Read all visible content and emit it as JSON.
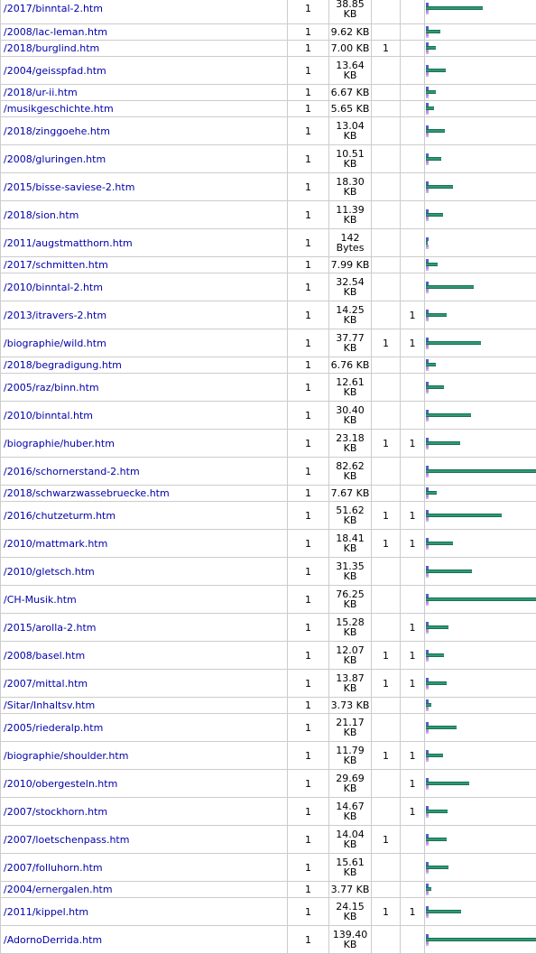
{
  "table": {
    "rows": [
      {
        "page": "/2017/binntal-2.htm",
        "hits": "1",
        "size": "38.85 KB",
        "entry": "",
        "exit": "",
        "bar_fraction": 0.519
      },
      {
        "page": "/2008/lac-leman.htm",
        "hits": "1",
        "size": "9.62 KB",
        "entry": "",
        "exit": "",
        "bar_fraction": 0.128
      },
      {
        "page": "/2018/burglind.htm",
        "hits": "1",
        "size": "7.00 KB",
        "entry": "1",
        "exit": "",
        "bar_fraction": 0.094
      },
      {
        "page": "/2004/geisspfad.htm",
        "hits": "1",
        "size": "13.64 KB",
        "entry": "",
        "exit": "",
        "bar_fraction": 0.182
      },
      {
        "page": "/2018/ur-ii.htm",
        "hits": "1",
        "size": "6.67 KB",
        "entry": "",
        "exit": "",
        "bar_fraction": 0.089
      },
      {
        "page": "/musikgeschichte.htm",
        "hits": "1",
        "size": "5.65 KB",
        "entry": "",
        "exit": "",
        "bar_fraction": 0.075
      },
      {
        "page": "/2018/zinggoehe.htm",
        "hits": "1",
        "size": "13.04 KB",
        "entry": "",
        "exit": "",
        "bar_fraction": 0.174
      },
      {
        "page": "/2008/gluringen.htm",
        "hits": "1",
        "size": "10.51 KB",
        "entry": "",
        "exit": "",
        "bar_fraction": 0.14
      },
      {
        "page": "/2015/bisse-saviese-2.htm",
        "hits": "1",
        "size": "18.30 KB",
        "entry": "",
        "exit": "",
        "bar_fraction": 0.244
      },
      {
        "page": "/2018/sion.htm",
        "hits": "1",
        "size": "11.39 KB",
        "entry": "",
        "exit": "",
        "bar_fraction": 0.152
      },
      {
        "page": "/2011/augstmatthorn.htm",
        "hits": "1",
        "size": "142 Bytes",
        "entry": "",
        "exit": "",
        "bar_fraction": 0.002
      },
      {
        "page": "/2017/schmitten.htm",
        "hits": "1",
        "size": "7.99 KB",
        "entry": "",
        "exit": "",
        "bar_fraction": 0.107
      },
      {
        "page": "/2010/binntal-2.htm",
        "hits": "1",
        "size": "32.54 KB",
        "entry": "",
        "exit": "",
        "bar_fraction": 0.434
      },
      {
        "page": "/2013/itravers-2.htm",
        "hits": "1",
        "size": "14.25 KB",
        "entry": "",
        "exit": "1",
        "bar_fraction": 0.19
      },
      {
        "page": "/biographie/wild.htm",
        "hits": "1",
        "size": "37.77 KB",
        "entry": "1",
        "exit": "1",
        "bar_fraction": 0.504
      },
      {
        "page": "/2018/begradigung.htm",
        "hits": "1",
        "size": "6.76 KB",
        "entry": "",
        "exit": "",
        "bar_fraction": 0.09
      },
      {
        "page": "/2005/raz/binn.htm",
        "hits": "1",
        "size": "12.61 KB",
        "entry": "",
        "exit": "",
        "bar_fraction": 0.168
      },
      {
        "page": "/2010/binntal.htm",
        "hits": "1",
        "size": "30.40 KB",
        "entry": "",
        "exit": "",
        "bar_fraction": 0.406
      },
      {
        "page": "/biographie/huber.htm",
        "hits": "1",
        "size": "23.18 KB",
        "entry": "1",
        "exit": "1",
        "bar_fraction": 0.309
      },
      {
        "page": "/2016/schornerstand-2.htm",
        "hits": "1",
        "size": "82.62 KB",
        "entry": "",
        "exit": "",
        "bar_fraction": 1.0
      },
      {
        "page": "/2018/schwarzwassebruecke.htm",
        "hits": "1",
        "size": "7.67 KB",
        "entry": "",
        "exit": "",
        "bar_fraction": 0.102
      },
      {
        "page": "/2016/chutzeturm.htm",
        "hits": "1",
        "size": "51.62 KB",
        "entry": "1",
        "exit": "1",
        "bar_fraction": 0.689
      },
      {
        "page": "/2010/mattmark.htm",
        "hits": "1",
        "size": "18.41 KB",
        "entry": "1",
        "exit": "1",
        "bar_fraction": 0.246
      },
      {
        "page": "/2010/gletsch.htm",
        "hits": "1",
        "size": "31.35 KB",
        "entry": "",
        "exit": "",
        "bar_fraction": 0.418
      },
      {
        "page": "/CH-Musik.htm",
        "hits": "1",
        "size": "76.25 KB",
        "entry": "",
        "exit": "",
        "bar_fraction": 1.0
      },
      {
        "page": "/2015/arolla-2.htm",
        "hits": "1",
        "size": "15.28 KB",
        "entry": "",
        "exit": "1",
        "bar_fraction": 0.204
      },
      {
        "page": "/2008/basel.htm",
        "hits": "1",
        "size": "12.07 KB",
        "entry": "1",
        "exit": "1",
        "bar_fraction": 0.161
      },
      {
        "page": "/2007/mittal.htm",
        "hits": "1",
        "size": "13.87 KB",
        "entry": "1",
        "exit": "1",
        "bar_fraction": 0.185
      },
      {
        "page": "/Sitar/Inhaltsv.htm",
        "hits": "1",
        "size": "3.73 KB",
        "entry": "",
        "exit": "",
        "bar_fraction": 0.05
      },
      {
        "page": "/2005/riederalp.htm",
        "hits": "1",
        "size": "21.17 KB",
        "entry": "",
        "exit": "",
        "bar_fraction": 0.282
      },
      {
        "page": "/biographie/shoulder.htm",
        "hits": "1",
        "size": "11.79 KB",
        "entry": "1",
        "exit": "1",
        "bar_fraction": 0.157
      },
      {
        "page": "/2010/obergesteln.htm",
        "hits": "1",
        "size": "29.69 KB",
        "entry": "",
        "exit": "1",
        "bar_fraction": 0.396
      },
      {
        "page": "/2007/stockhorn.htm",
        "hits": "1",
        "size": "14.67 KB",
        "entry": "",
        "exit": "1",
        "bar_fraction": 0.196
      },
      {
        "page": "/2007/loetschenpass.htm",
        "hits": "1",
        "size": "14.04 KB",
        "entry": "1",
        "exit": "",
        "bar_fraction": 0.187
      },
      {
        "page": "/2007/folluhorn.htm",
        "hits": "1",
        "size": "15.61 KB",
        "entry": "",
        "exit": "",
        "bar_fraction": 0.208
      },
      {
        "page": "/2004/ernergalen.htm",
        "hits": "1",
        "size": "3.77 KB",
        "entry": "",
        "exit": "",
        "bar_fraction": 0.05
      },
      {
        "page": "/2011/kippel.htm",
        "hits": "1",
        "size": "24.15 KB",
        "entry": "1",
        "exit": "1",
        "bar_fraction": 0.322
      },
      {
        "page": "/AdornoDerrida.htm",
        "hits": "1",
        "size": "139.40 KB",
        "entry": "",
        "exit": "",
        "bar_fraction": 1.0
      }
    ]
  },
  "colors": {
    "link": "#0000aa",
    "bar_pages": "#4a62c8",
    "bar_bandwidth": "#2c9a74",
    "bar_entry": "#b98cd8",
    "bar_exit": "#c9b2e6",
    "border": "#cccccc"
  }
}
